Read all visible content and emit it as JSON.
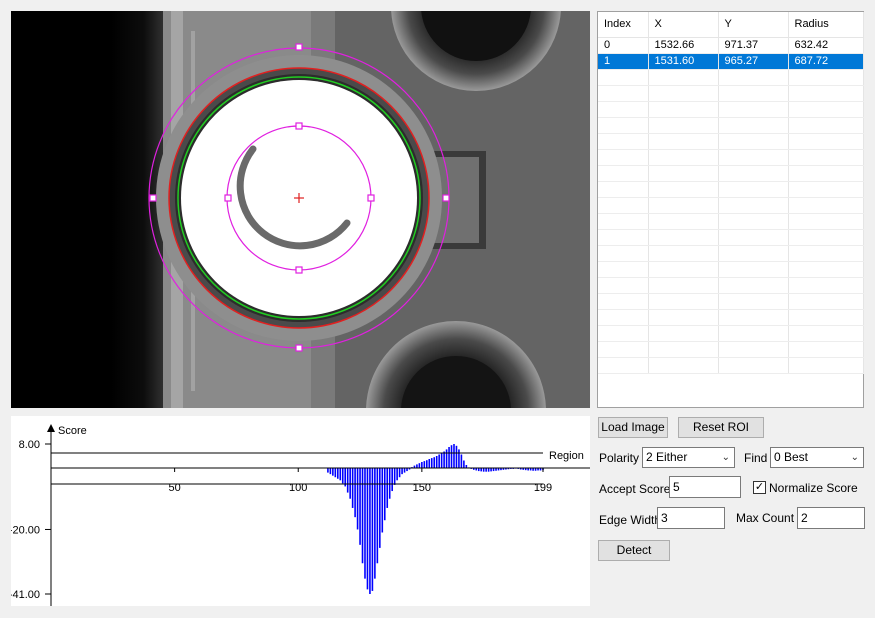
{
  "table": {
    "headers": [
      "Index",
      "X",
      "Y",
      "Radius"
    ],
    "rows": [
      [
        "0",
        "1532.66",
        "971.37",
        "632.42"
      ],
      [
        "1",
        "1531.60",
        "965.27",
        "687.72"
      ]
    ],
    "selected_row": 1
  },
  "buttons": {
    "load_image": "Load Image",
    "reset_roi": "Reset ROI",
    "detect": "Detect"
  },
  "params": {
    "polarity_label": "Polarity",
    "polarity_value": "2 Either",
    "find_label": "Find",
    "find_value": "0 Best",
    "accept_score_label": "Accept Score",
    "accept_score_value": "5",
    "normalize_label": "Normalize Score",
    "normalize_checked": true,
    "edge_width_label": "Edge Width",
    "edge_width_value": "3",
    "max_count_label": "Max Count",
    "max_count_value": "2"
  },
  "icons": {
    "dropdown": "chevron-down-icon",
    "check": "checkmark-icon",
    "crosshair": "crosshair-icon"
  },
  "chart_data": {
    "type": "bar",
    "title": "",
    "ylabel": "Score",
    "xlabel": "Region",
    "y_ticks": [
      "8.00",
      "-20.00",
      "-41.00"
    ],
    "y_tick_values": [
      8,
      -20,
      -41
    ],
    "x_ticks": [
      "50",
      "100",
      "150",
      "199"
    ],
    "x_tick_values": [
      50,
      100,
      150,
      199
    ],
    "xlim": [
      0,
      199
    ],
    "ylim": [
      -41,
      8
    ],
    "color": "#0000ff",
    "series": [
      {
        "name": "score",
        "x_start": 112,
        "values": [
          -1.5,
          -2,
          -2.5,
          -3,
          -3.5,
          -4,
          -5,
          -6,
          -8,
          -10,
          -13,
          -16,
          -20,
          -25,
          -31,
          -36,
          -39.5,
          -41,
          -40,
          -36,
          -31,
          -26,
          -21,
          -17,
          -13,
          -10,
          -7.5,
          -5.5,
          -4,
          -3,
          -2,
          -1.5,
          -1,
          -0.5,
          0.3,
          0.8,
          1.2,
          1.6,
          2,
          2.3,
          2.6,
          3,
          3.3,
          3.6,
          4,
          4.5,
          5,
          5.5,
          6.2,
          7,
          7.6,
          8,
          7.4,
          6.2,
          4.5,
          2.5,
          1,
          0.2,
          -0.3,
          -0.6,
          -0.8,
          -1,
          -1.1,
          -1.2,
          -1.2,
          -1.2,
          -1.1,
          -1,
          -0.9,
          -0.8,
          -0.7,
          -0.6,
          -0.5,
          -0.4,
          -0.3,
          -0.3,
          -0.2,
          -0.3,
          -0.5,
          -0.6,
          -0.7,
          -0.8,
          -0.8,
          -0.9,
          -0.9,
          -0.8,
          -0.8,
          -0.7
        ]
      }
    ]
  }
}
